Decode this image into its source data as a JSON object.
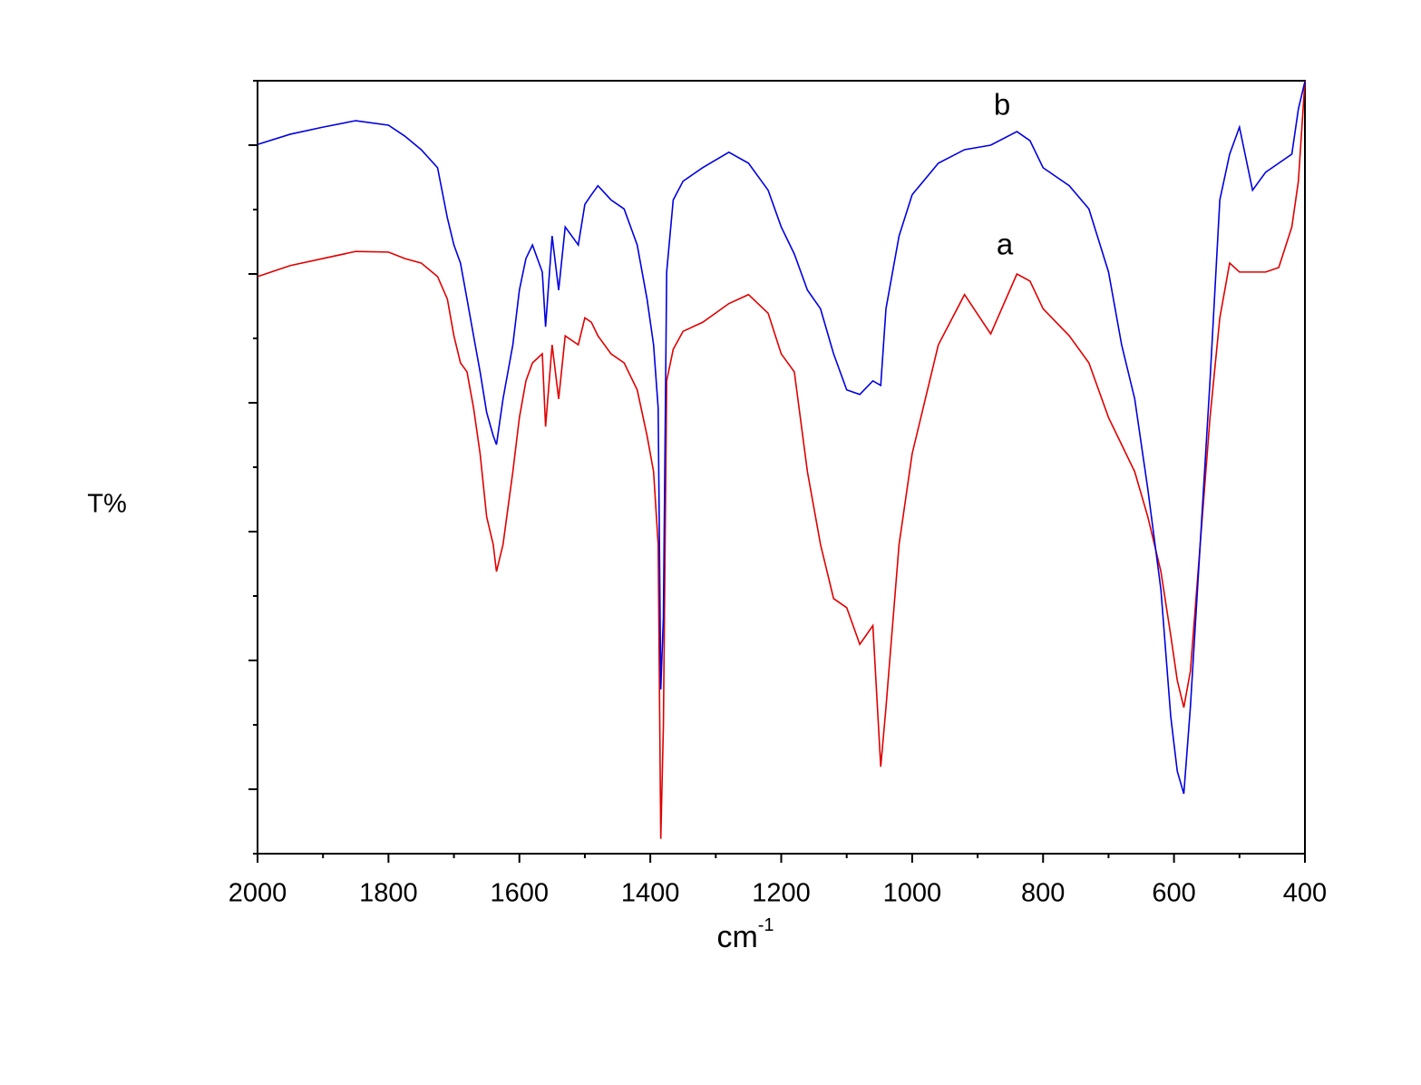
{
  "chart_data": {
    "type": "line",
    "y_label": "T%",
    "x_label": "cm",
    "x_label_sup": "-1",
    "x": [
      2000,
      1950,
      1900,
      1850,
      1800,
      1775,
      1750,
      1725,
      1710,
      1700,
      1690,
      1680,
      1670,
      1660,
      1650,
      1640,
      1635,
      1625,
      1610,
      1600,
      1590,
      1580,
      1565,
      1560,
      1550,
      1540,
      1530,
      1510,
      1500,
      1490,
      1480,
      1460,
      1440,
      1420,
      1405,
      1395,
      1388,
      1384,
      1380,
      1375,
      1365,
      1350,
      1320,
      1280,
      1250,
      1220,
      1200,
      1180,
      1160,
      1140,
      1120,
      1100,
      1080,
      1060,
      1048,
      1040,
      1020,
      1000,
      960,
      920,
      880,
      840,
      820,
      800,
      760,
      730,
      700,
      680,
      660,
      640,
      620,
      605,
      595,
      585,
      575,
      560,
      545,
      530,
      515,
      500,
      480,
      460,
      440,
      420,
      410,
      400
    ],
    "series": [
      {
        "name": "a",
        "color": "#e00000",
        "values": [
          8.96,
          9.13,
          9.24,
          9.35,
          9.34,
          9.24,
          9.17,
          8.96,
          8.61,
          8.04,
          7.62,
          7.48,
          6.92,
          6.21,
          5.23,
          4.8,
          4.38,
          4.8,
          5.93,
          6.77,
          7.34,
          7.62,
          7.76,
          6.63,
          7.9,
          7.06,
          8.04,
          7.9,
          8.32,
          8.25,
          8.04,
          7.76,
          7.62,
          7.2,
          6.49,
          5.93,
          4.8,
          0.23,
          1.99,
          7.34,
          7.83,
          8.11,
          8.25,
          8.54,
          8.68,
          8.39,
          7.76,
          7.48,
          5.93,
          4.8,
          3.96,
          3.82,
          3.25,
          3.54,
          1.35,
          2.27,
          4.8,
          6.21,
          7.9,
          8.68,
          8.07,
          9.0,
          8.89,
          8.46,
          8.04,
          7.62,
          6.77,
          6.35,
          5.93,
          5.23,
          4.38,
          3.39,
          2.69,
          2.27,
          2.83,
          4.8,
          6.77,
          8.32,
          9.17,
          9.03,
          9.03,
          9.03,
          9.1,
          9.73,
          10.44,
          12.0
        ]
      },
      {
        "name": "b",
        "color": "#0000e0",
        "values": [
          11.01,
          11.17,
          11.28,
          11.38,
          11.31,
          11.14,
          10.93,
          10.65,
          9.87,
          9.45,
          9.17,
          8.61,
          8.04,
          7.48,
          6.85,
          6.49,
          6.35,
          7.06,
          7.9,
          8.75,
          9.24,
          9.45,
          9.03,
          8.18,
          9.59,
          8.75,
          9.73,
          9.45,
          10.08,
          10.23,
          10.37,
          10.15,
          10.01,
          9.45,
          8.61,
          7.9,
          6.92,
          2.55,
          3.68,
          9.03,
          10.15,
          10.44,
          10.65,
          10.89,
          10.72,
          10.3,
          9.73,
          9.31,
          8.75,
          8.46,
          7.76,
          7.2,
          7.13,
          7.34,
          7.27,
          8.46,
          9.59,
          10.23,
          10.72,
          10.93,
          11.0,
          11.21,
          11.07,
          10.65,
          10.37,
          10.01,
          9.03,
          7.9,
          7.06,
          5.66,
          4.1,
          2.13,
          1.28,
          0.93,
          2.27,
          4.8,
          7.34,
          10.15,
          10.86,
          11.28,
          10.3,
          10.58,
          10.72,
          10.86,
          11.56,
          11.99
        ]
      }
    ],
    "xlim": [
      2000,
      400
    ],
    "xticks": [
      2000,
      1800,
      1600,
      1400,
      1200,
      1000,
      800,
      600,
      400
    ],
    "xminor": [
      1900,
      1700,
      1500,
      1300,
      1100,
      900,
      700,
      500
    ],
    "ylim": [
      0,
      12
    ],
    "yticks": [
      1,
      3,
      5,
      7,
      9,
      11
    ],
    "yminor": [
      0,
      2,
      4,
      6,
      8,
      10,
      12
    ],
    "ytick_labels": false
  }
}
